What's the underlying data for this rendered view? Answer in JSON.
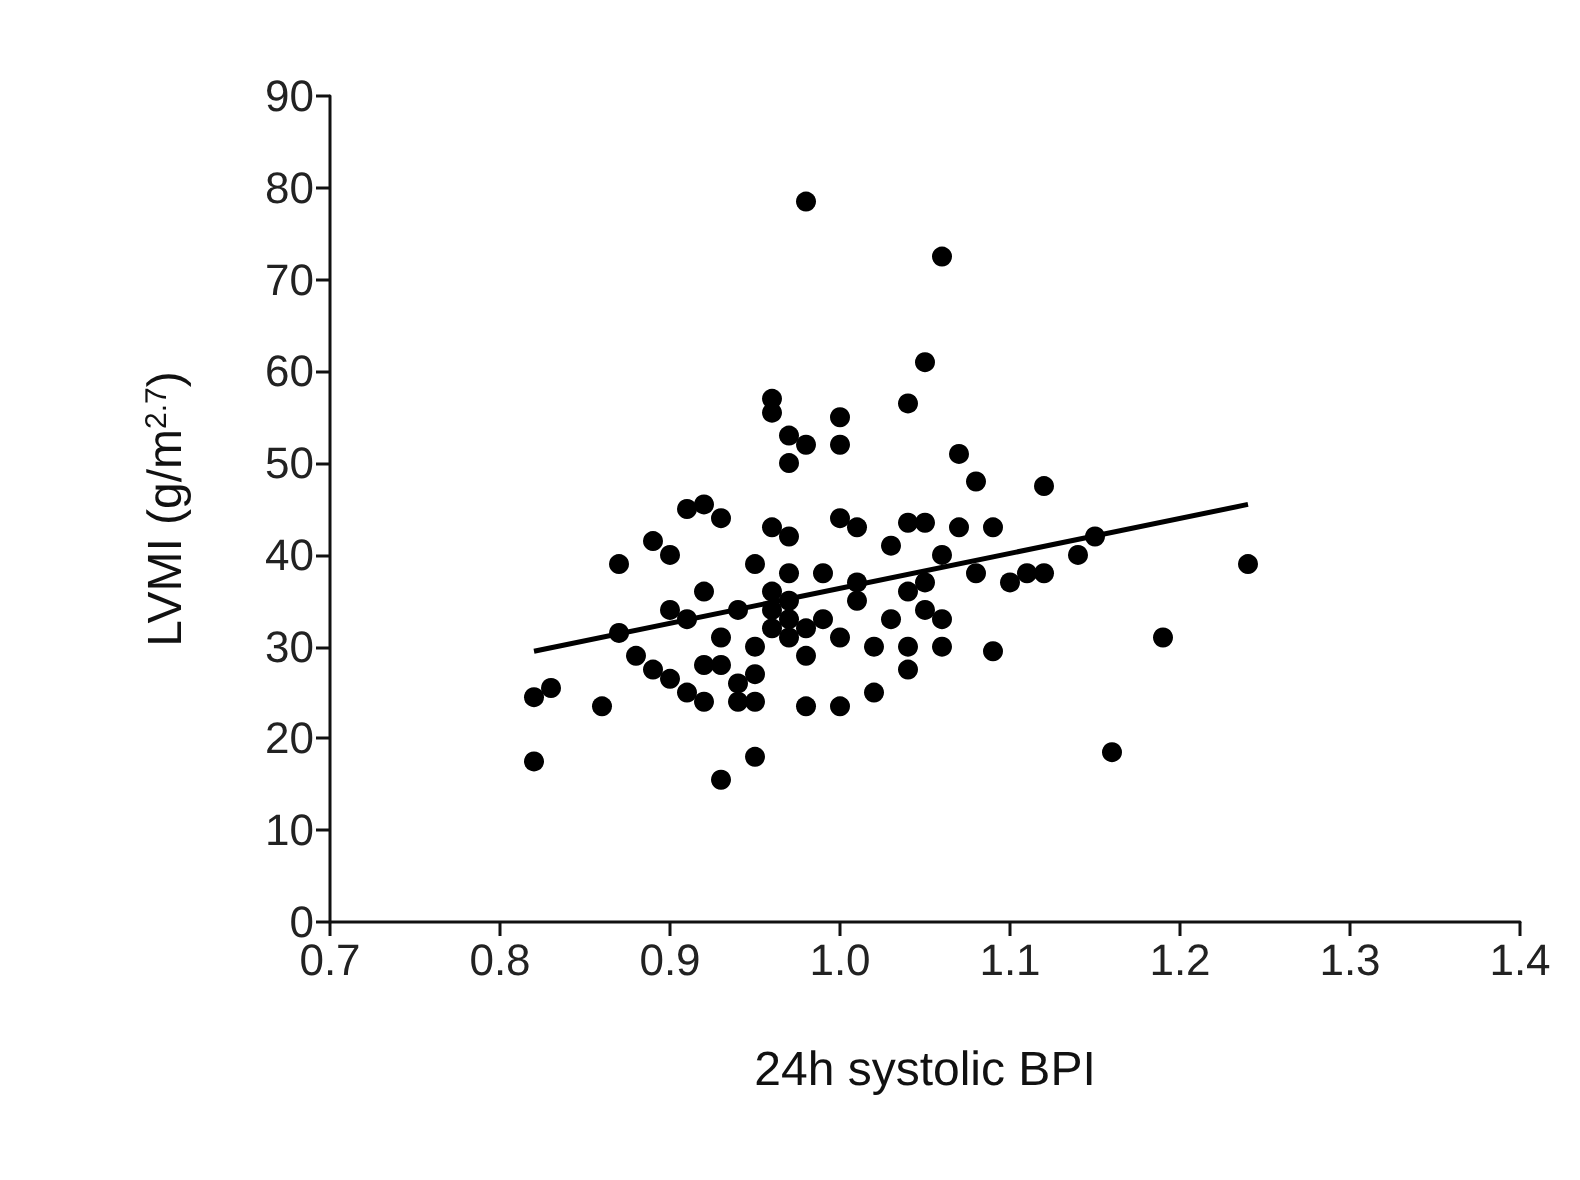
{
  "chart_data": {
    "type": "scatter",
    "xlabel": "24h systolic BPI",
    "ylabel": "LVMI (g/m$^{2.7}$)",
    "xlim": [
      0.7,
      1.4
    ],
    "xticks": [
      {
        "value": 0.7,
        "label": "0.7"
      },
      {
        "value": 0.8,
        "label": "0.8"
      },
      {
        "value": 0.9,
        "label": "0.9"
      },
      {
        "value": 1.0,
        "label": "1.0"
      },
      {
        "value": 1.1,
        "label": "1.1"
      },
      {
        "value": 1.2,
        "label": "1.2"
      },
      {
        "value": 1.3,
        "label": "1.3"
      },
      {
        "value": 1.4,
        "label": "1.4"
      }
    ],
    "ylim": [
      0,
      90
    ],
    "yticks": [
      0,
      10,
      20,
      30,
      40,
      50,
      60,
      70,
      80,
      90
    ],
    "grid": false,
    "marker": "circle",
    "series": [
      {
        "color": "#000000",
        "x": [
          0.82,
          0.82,
          0.83,
          0.86,
          0.87,
          0.87,
          0.89,
          0.9,
          0.9,
          0.89,
          0.9,
          0.91,
          0.92,
          0.91,
          0.92,
          0.93,
          0.92,
          0.93,
          0.95,
          0.91,
          0.93,
          0.94,
          0.95,
          0.94,
          0.95,
          0.93,
          0.94,
          0.95,
          0.96,
          0.96,
          0.97,
          0.97,
          0.98,
          0.96,
          0.97,
          0.97,
          0.96,
          0.96,
          0.97,
          0.97,
          0.98,
          0.96,
          0.97,
          0.98,
          0.98,
          0.98,
          0.99,
          1.0,
          1.0,
          1.0,
          1.0,
          1.01,
          1.01,
          1.0,
          1.02,
          1.03,
          1.03,
          1.02,
          1.04,
          1.05,
          1.06,
          1.04,
          1.05,
          1.04,
          1.05,
          1.05,
          1.06,
          1.04,
          1.06,
          1.06,
          1.04,
          1.07,
          1.08,
          1.07,
          1.09,
          1.08,
          1.09,
          1.1,
          1.12,
          1.11,
          1.12,
          1.14,
          1.15,
          1.16,
          1.19,
          1.24,
          0.99,
          1.01,
          0.95,
          0.92,
          0.88
        ],
        "values": [
          17.5,
          24.5,
          25.5,
          23.5,
          31.5,
          39,
          41.5,
          40,
          34,
          27.5,
          26.5,
          25,
          24,
          45,
          45.5,
          44,
          36,
          15.5,
          18,
          33,
          28,
          26,
          27,
          24,
          24,
          31,
          34,
          39,
          57,
          55.5,
          53,
          50,
          52,
          43,
          42,
          38,
          36,
          34,
          33,
          31,
          32,
          32,
          35,
          29,
          23.5,
          78.5,
          38,
          23.5,
          55,
          52,
          44,
          43,
          35,
          31,
          30,
          33,
          41,
          25,
          56.5,
          61,
          72.5,
          43.5,
          43.5,
          36,
          34,
          37,
          40,
          30,
          33,
          30,
          27.5,
          51,
          48,
          43,
          43,
          38,
          29.5,
          37,
          47.5,
          38,
          38,
          40,
          42,
          18.5,
          31,
          39,
          33,
          37,
          30,
          28,
          29
        ]
      },
      {
        "type": "line",
        "color": "#000000",
        "marker": "none",
        "line_style": "solid",
        "x": [
          0.82,
          1.24
        ],
        "values": [
          29.5,
          45.5
        ]
      }
    ]
  }
}
